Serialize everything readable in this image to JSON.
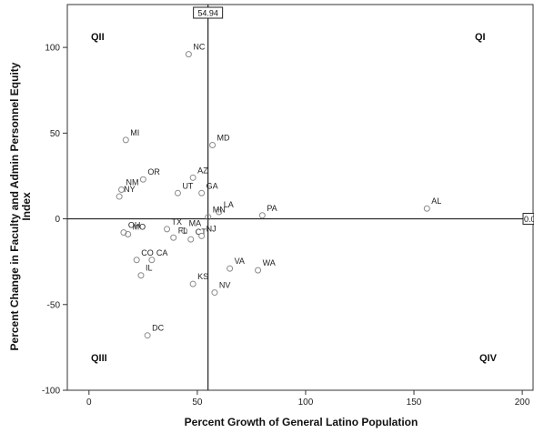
{
  "chart_data": {
    "type": "scatter",
    "xlabel": "Percent Growth of General Latino Population",
    "ylabel": "Percent Change in Faculty and Admin Personnel Equity",
    "ylabel_line2": "Index",
    "xlim": [
      -10,
      205
    ],
    "ylim": [
      -100,
      125
    ],
    "xticks": [
      0,
      50,
      100,
      150,
      200
    ],
    "yticks": [
      -100,
      -50,
      0,
      50,
      100
    ],
    "grid": false,
    "reference_lines": {
      "vertical": {
        "x": 54.94,
        "label": "54.94"
      },
      "horizontal": {
        "y": 0,
        "label": "0.0"
      }
    },
    "quadrants": {
      "q1": "QI",
      "q2": "QII",
      "q3": "QIII",
      "q4": "QIV"
    },
    "points": [
      {
        "label": "NC",
        "x": 46,
        "y": 96
      },
      {
        "label": "MI",
        "x": 17,
        "y": 46
      },
      {
        "label": "MD",
        "x": 57,
        "y": 43
      },
      {
        "label": "OR",
        "x": 25,
        "y": 23
      },
      {
        "label": "AZ",
        "x": 48,
        "y": 24
      },
      {
        "label": "NM",
        "x": 15,
        "y": 17
      },
      {
        "label": "NY",
        "x": 14,
        "y": 13
      },
      {
        "label": "GA",
        "x": 52,
        "y": 15
      },
      {
        "label": "UT",
        "x": 41,
        "y": 15
      },
      {
        "label": "LA",
        "x": 60,
        "y": 4
      },
      {
        "label": "PA",
        "x": 80,
        "y": 2
      },
      {
        "label": "AL",
        "x": 156,
        "y": 6
      },
      {
        "label": "OH",
        "x": 16,
        "y": -8
      },
      {
        "label": "TX",
        "x": 36,
        "y": -6
      },
      {
        "label": "MA",
        "x": 44,
        "y": -7
      },
      {
        "label": "MN",
        "x": 55,
        "y": 1
      },
      {
        "label": "MO",
        "x": 18,
        "y": -9
      },
      {
        "label": "FL",
        "x": 39,
        "y": -11
      },
      {
        "label": "CT",
        "x": 47,
        "y": -12
      },
      {
        "label": "NJ",
        "x": 52,
        "y": -10
      },
      {
        "label": "CO",
        "x": 22,
        "y": -24
      },
      {
        "label": "CA",
        "x": 29,
        "y": -24
      },
      {
        "label": "IL",
        "x": 24,
        "y": -33
      },
      {
        "label": "VA",
        "x": 65,
        "y": -29
      },
      {
        "label": "WA",
        "x": 78,
        "y": -30
      },
      {
        "label": "KS",
        "x": 48,
        "y": -38
      },
      {
        "label": "NV",
        "x": 58,
        "y": -43
      },
      {
        "label": "DC",
        "x": 27,
        "y": -68
      }
    ]
  }
}
